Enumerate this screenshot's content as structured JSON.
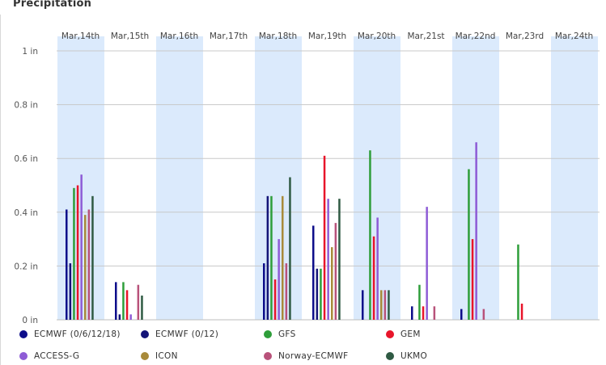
{
  "chart_data": {
    "type": "bar",
    "title": "Precipitation",
    "xlabel": "",
    "ylabel": "",
    "ylim": [
      0,
      1
    ],
    "y_ticks": [
      "0 in",
      "0.2 in",
      "0.4 in",
      "0.6 in",
      "0.8 in",
      "1 in"
    ],
    "grid": true,
    "legend_position": "bottom",
    "categories": [
      "Mar,14th",
      "Mar,15th",
      "Mar,16th",
      "Mar,17th",
      "Mar,18th",
      "Mar,19th",
      "Mar,20th",
      "Mar,21st",
      "Mar,22nd",
      "Mar,23rd",
      "Mar,24th"
    ],
    "shaded_columns": [
      0,
      2,
      4,
      6,
      8,
      10
    ],
    "shade_color": "#dbeafc",
    "series": [
      {
        "name": "ECMWF (0/6/12/18)",
        "color": "#0d0d8a",
        "values": [
          0.41,
          0.14,
          0,
          0,
          0.21,
          0.35,
          0.11,
          0.05,
          0.04,
          0,
          0
        ]
      },
      {
        "name": "ECMWF (0/12)",
        "color": "#141478",
        "values": [
          0.21,
          0.02,
          0,
          0,
          0.46,
          0.19,
          0,
          0,
          0,
          0,
          0
        ]
      },
      {
        "name": "GFS",
        "color": "#2e9e3a",
        "values": [
          0.49,
          0.14,
          0,
          0,
          0.46,
          0.19,
          0.63,
          0.13,
          0.56,
          0.28,
          0
        ]
      },
      {
        "name": "GEM",
        "color": "#e8152a",
        "values": [
          0.5,
          0.11,
          0,
          0,
          0.15,
          0.61,
          0.31,
          0.05,
          0.3,
          0.06,
          0
        ]
      },
      {
        "name": "ACCESS-G",
        "color": "#8e5cd6",
        "values": [
          0.54,
          0.02,
          0,
          0,
          0.3,
          0.45,
          0.38,
          0.42,
          0.66,
          0,
          0
        ]
      },
      {
        "name": "ICON",
        "color": "#a88a3a",
        "values": [
          0.39,
          0,
          0,
          0,
          0.46,
          0.27,
          0.11,
          0,
          0,
          0,
          0
        ]
      },
      {
        "name": "Norway-ECMWF",
        "color": "#b8527a",
        "values": [
          0.41,
          0.13,
          0,
          0,
          0.21,
          0.36,
          0.11,
          0.05,
          0.04,
          0,
          0
        ]
      },
      {
        "name": "UKMO",
        "color": "#2f5a43",
        "values": [
          0.46,
          0.09,
          0,
          0,
          0.53,
          0.45,
          0.11,
          0,
          0,
          0,
          0
        ]
      }
    ]
  }
}
